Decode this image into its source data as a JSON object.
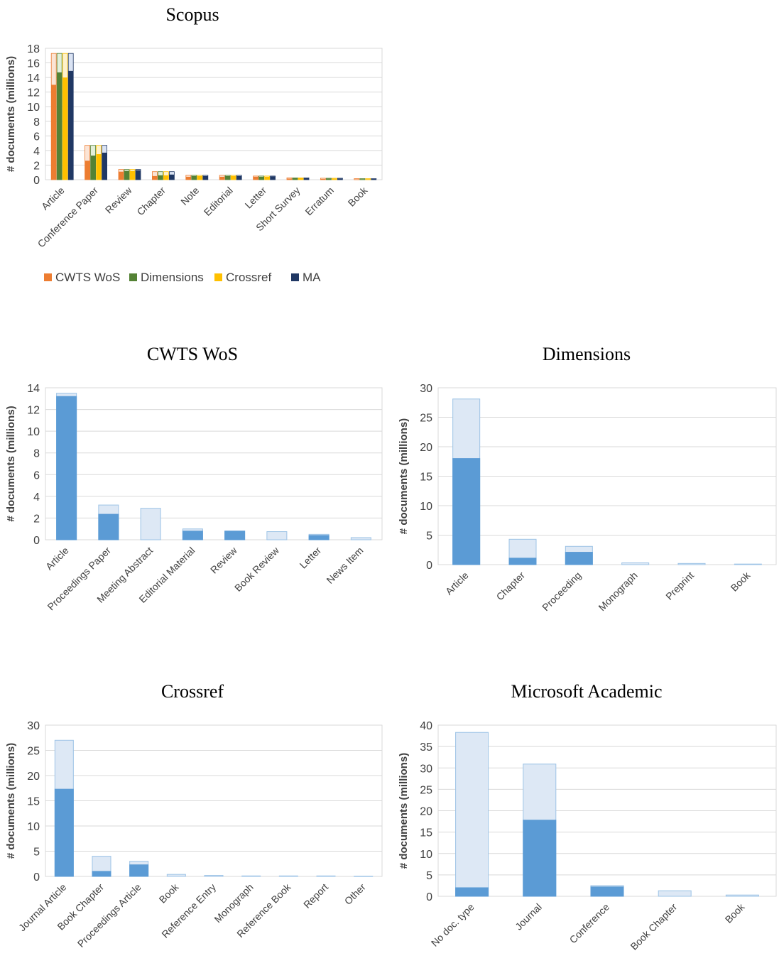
{
  "chart_data": [
    {
      "type": "bar",
      "title": "Scopus",
      "ylabel": "# documents (millions)",
      "ylim": [
        0,
        18
      ],
      "yticks": [
        0,
        2,
        4,
        6,
        8,
        10,
        12,
        14,
        16,
        18
      ],
      "grid": true,
      "legend": "bottom",
      "categories": [
        "Article",
        "Conference Paper",
        "Review",
        "Chapter",
        "Note",
        "Editorial",
        "Letter",
        "Short Survey",
        "Erratum",
        "Book"
      ],
      "total": [
        17.3,
        4.7,
        1.4,
        1.1,
        0.6,
        0.6,
        0.5,
        0.25,
        0.2,
        0.15
      ],
      "series": [
        {
          "name": "CWTS WoS",
          "color": "#ed7d31",
          "light": "#fbe4d5",
          "values": [
            13.0,
            2.6,
            1.1,
            0.5,
            0.4,
            0.4,
            0.4,
            0.15,
            0.1,
            0.05
          ]
        },
        {
          "name": "Dimensions",
          "color": "#548235",
          "light": "#e2efda",
          "values": [
            14.7,
            3.3,
            1.2,
            0.6,
            0.5,
            0.5,
            0.4,
            0.2,
            0.15,
            0.08
          ]
        },
        {
          "name": "Crossref",
          "color": "#ffc000",
          "light": "#fff2cc",
          "values": [
            14.0,
            3.5,
            1.2,
            0.6,
            0.5,
            0.5,
            0.4,
            0.2,
            0.15,
            0.08
          ]
        },
        {
          "name": "MA",
          "color": "#203864",
          "light": "#dae3f3",
          "values": [
            14.9,
            3.7,
            1.3,
            0.7,
            0.5,
            0.5,
            0.45,
            0.2,
            0.15,
            0.1
          ]
        }
      ]
    },
    {
      "type": "bar",
      "title": "CWTS WoS",
      "ylabel": "# documents (millions)",
      "ylim": [
        0,
        14
      ],
      "yticks": [
        0,
        2,
        4,
        6,
        8,
        10,
        12,
        14
      ],
      "grid": true,
      "categories": [
        "Article",
        "Proceedings Paper",
        "Meeting Abstract",
        "Editorial Material",
        "Review",
        "Book Review",
        "Letter",
        "News Item"
      ],
      "total": [
        13.5,
        3.2,
        2.9,
        1.0,
        0.8,
        0.75,
        0.5,
        0.2
      ],
      "matched": [
        13.2,
        2.35,
        0.0,
        0.8,
        0.8,
        0.0,
        0.4,
        0.0
      ]
    },
    {
      "type": "bar",
      "title": "Dimensions",
      "ylabel": "# documents (millions)",
      "ylim": [
        0,
        30
      ],
      "yticks": [
        0,
        5,
        10,
        15,
        20,
        25,
        30
      ],
      "grid": true,
      "categories": [
        "Article",
        "Chapter",
        "Proceeding",
        "Monograph",
        "Preprint",
        "Book"
      ],
      "total": [
        28.1,
        4.3,
        3.1,
        0.3,
        0.2,
        0.1
      ],
      "matched": [
        18.0,
        1.1,
        2.1,
        0.0,
        0.0,
        0.0
      ]
    },
    {
      "type": "bar",
      "title": "Crossref",
      "ylabel": "# documents (millions)",
      "ylim": [
        0,
        30
      ],
      "yticks": [
        0,
        5,
        10,
        15,
        20,
        25,
        30
      ],
      "grid": true,
      "categories": [
        "Journal Article",
        "Book Chapter",
        "Proceedings Article",
        "Book",
        "Reference Entry",
        "Monograph",
        "Reference Book",
        "Report",
        "Other"
      ],
      "total": [
        27.0,
        4.0,
        3.0,
        0.4,
        0.2,
        0.1,
        0.1,
        0.1,
        0.05
      ],
      "matched": [
        17.3,
        1.0,
        2.3,
        0.0,
        0.0,
        0.0,
        0.0,
        0.0,
        0.0
      ]
    },
    {
      "type": "bar",
      "title": "Microsoft Academic",
      "ylabel": "# documents (millions)",
      "ylim": [
        0,
        40
      ],
      "yticks": [
        0,
        5,
        10,
        15,
        20,
        25,
        30,
        35,
        40
      ],
      "grid": true,
      "categories": [
        "No doc. type",
        "Journal",
        "Conference",
        "Book Chapter",
        "Book"
      ],
      "total": [
        38.3,
        30.9,
        2.5,
        1.3,
        0.3
      ],
      "matched": [
        2.0,
        17.8,
        2.2,
        0.0,
        0.0
      ]
    }
  ],
  "colors": {
    "matched": "#5b9bd5",
    "unmatched": "#dde8f5",
    "outline": "#9dc3e6"
  }
}
